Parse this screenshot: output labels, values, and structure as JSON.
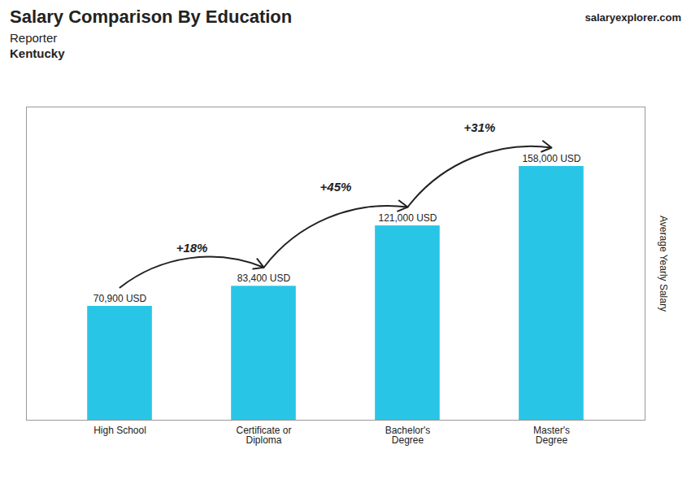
{
  "chart_data": {
    "type": "bar",
    "title": "Salary Comparison By Education",
    "subtitle": [
      "Reporter",
      "Kentucky"
    ],
    "caption": "salaryexplorer.com",
    "ylabel": "Average Yearly Salary",
    "categories": [
      "High School",
      "Certificate or\nDiploma",
      "Bachelor's\nDegree",
      "Master's\nDegree"
    ],
    "values": [
      70900,
      83400,
      121000,
      158000
    ],
    "value_labels": [
      "70,900 USD",
      "83,400 USD",
      "121,000 USD",
      "158,000 USD"
    ],
    "data_labels": true,
    "color": "#29c5e6",
    "ylim": [
      0,
      195000
    ],
    "yticks": [],
    "tick_labels": "x",
    "grid": false,
    "annotations": [
      {
        "text": "+18%",
        "from": "High School",
        "to": "Certificate or\nDiploma"
      },
      {
        "text": "+45%",
        "from": "Certificate or\nDiploma",
        "to": "Bachelor's\nDegree"
      },
      {
        "text": "+31%",
        "from": "Bachelor's\nDegree",
        "to": "Master's\nDegree"
      }
    ]
  }
}
